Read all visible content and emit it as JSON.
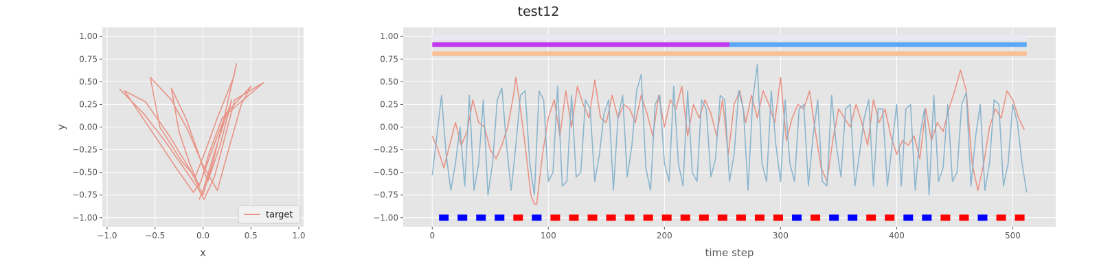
{
  "figure": {
    "title": "test12"
  },
  "chart_data": [
    {
      "type": "line",
      "name": "phase-plot",
      "xlabel": "x",
      "ylabel": "y",
      "xlim": [
        -1.05,
        1.05
      ],
      "ylim": [
        -1.1,
        1.1
      ],
      "xticks": [
        -1.0,
        -0.5,
        0.0,
        0.5,
        1.0
      ],
      "yticks": [
        -1.0,
        -0.75,
        -0.5,
        -0.25,
        0.0,
        0.25,
        0.5,
        0.75,
        1.0
      ],
      "grid": true,
      "legend": {
        "position": "lower-right",
        "entries": [
          "target"
        ]
      },
      "series": [
        {
          "name": "target",
          "color": "#E8897A",
          "x": [
            -0.87,
            -0.62,
            -0.4,
            -0.2,
            -0.05,
            0.01,
            0.12,
            0.22,
            0.33,
            0.63,
            0.2,
            0.06,
            -0.02,
            -0.1,
            -0.28,
            -0.5,
            -0.82,
            -0.6,
            -0.35,
            -0.13,
            0.0,
            0.1,
            0.22,
            0.35,
            0.32,
            0.15,
            0.03,
            -0.08,
            -0.22,
            -0.45,
            -0.55,
            -0.33,
            -0.15,
            -0.01,
            0.15,
            0.28,
            0.4,
            0.5,
            0.24,
            0.08,
            -0.04,
            -0.14,
            -0.25,
            -0.33,
            -0.18,
            -0.06,
            0.05,
            0.18,
            0.3,
            0.22,
            0.1,
            0.0,
            -0.04
          ],
          "y": [
            0.42,
            0.15,
            -0.15,
            -0.45,
            -0.68,
            -0.8,
            -0.55,
            -0.15,
            0.3,
            0.49,
            0.1,
            -0.3,
            -0.6,
            -0.72,
            -0.45,
            -0.1,
            0.4,
            0.28,
            -0.1,
            -0.48,
            -0.75,
            -0.4,
            0.1,
            0.7,
            0.55,
            0.1,
            -0.25,
            -0.55,
            -0.38,
            0.0,
            0.55,
            0.3,
            -0.05,
            -0.4,
            -0.7,
            -0.2,
            0.25,
            0.45,
            0.15,
            -0.3,
            -0.65,
            -0.4,
            -0.05,
            0.43,
            0.1,
            -0.25,
            -0.6,
            -0.2,
            0.3,
            0.05,
            -0.35,
            -0.7,
            -0.8
          ]
        }
      ]
    },
    {
      "type": "line",
      "name": "time-series",
      "xlabel": "time step",
      "ylabel": "",
      "xlim": [
        -25,
        537
      ],
      "ylim": [
        -1.1,
        1.1
      ],
      "xticks": [
        0,
        100,
        200,
        300,
        400,
        500
      ],
      "yticks": [
        -1.0,
        -0.75,
        -0.5,
        -0.25,
        0.0,
        0.25,
        0.5,
        0.75,
        1.0
      ],
      "grid": true,
      "bands": [
        {
          "y": 0.99,
          "segments": [
            {
              "start": 0,
              "end": 512,
              "color": "#E9E9F3"
            }
          ]
        },
        {
          "y": 0.91,
          "segments": [
            {
              "start": 0,
              "end": 256,
              "color": "#C23AF0"
            },
            {
              "start": 256,
              "end": 512,
              "color": "#5BA8F5"
            }
          ]
        },
        {
          "y": 0.81,
          "segments": [
            {
              "start": 0,
              "end": 512,
              "color": "#F7C097"
            }
          ]
        }
      ],
      "markers": {
        "y": -1.0,
        "x": [
          10,
          26,
          42,
          58,
          74,
          90,
          106,
          122,
          138,
          154,
          170,
          186,
          202,
          218,
          234,
          250,
          266,
          282,
          298,
          314,
          330,
          346,
          362,
          378,
          394,
          410,
          426,
          442,
          458,
          474,
          490,
          506
        ],
        "colors": [
          "#0000FF",
          "#0000FF",
          "#0000FF",
          "#0000FF",
          "#FF0000",
          "#0000FF",
          "#FF0000",
          "#FF0000",
          "#FF0000",
          "#FF0000",
          "#FF0000",
          "#FF0000",
          "#FF0000",
          "#FF0000",
          "#FF0000",
          "#FF0000",
          "#FF0000",
          "#FF0000",
          "#FF0000",
          "#0000FF",
          "#FF0000",
          "#0000FF",
          "#0000FF",
          "#FF0000",
          "#FF0000",
          "#0000FF",
          "#0000FF",
          "#FF0000",
          "#FF0000",
          "#0000FF",
          "#FF0000",
          "#FF0000"
        ]
      },
      "series": [
        {
          "name": "",
          "color": "#E8897A",
          "x": [
            0,
            5,
            10,
            15,
            20,
            25,
            30,
            35,
            40,
            45,
            50,
            55,
            60,
            65,
            70,
            72,
            75,
            80,
            85,
            88,
            90,
            95,
            100,
            105,
            110,
            115,
            120,
            125,
            130,
            135,
            140,
            145,
            150,
            155,
            160,
            165,
            170,
            175,
            180,
            185,
            190,
            195,
            200,
            205,
            210,
            215,
            220,
            225,
            230,
            235,
            240,
            245,
            250,
            255,
            260,
            265,
            270,
            275,
            280,
            285,
            290,
            295,
            300,
            305,
            310,
            315,
            320,
            325,
            330,
            335,
            340,
            345,
            350,
            355,
            360,
            365,
            370,
            375,
            380,
            385,
            390,
            395,
            400,
            405,
            410,
            415,
            420,
            425,
            430,
            435,
            440,
            445,
            450,
            455,
            460,
            465,
            470,
            475,
            480,
            485,
            490,
            495,
            500,
            505,
            510
          ],
          "y": [
            -0.1,
            -0.25,
            -0.45,
            -0.2,
            0.05,
            -0.2,
            -0.05,
            0.3,
            0.05,
            0.0,
            -0.25,
            -0.35,
            -0.2,
            0.0,
            0.35,
            0.55,
            0.3,
            -0.2,
            -0.75,
            -0.85,
            -0.85,
            -0.3,
            0.1,
            0.3,
            -0.1,
            0.4,
            0.0,
            0.45,
            0.25,
            0.1,
            0.52,
            0.1,
            0.05,
            0.35,
            0.1,
            0.25,
            0.2,
            0.05,
            0.35,
            0.15,
            -0.1,
            0.35,
            0.0,
            0.3,
            0.2,
            0.45,
            -0.1,
            0.25,
            0.1,
            0.3,
            0.15,
            -0.1,
            0.3,
            -0.3,
            0.25,
            0.4,
            0.05,
            0.35,
            0.1,
            0.4,
            0.25,
            0.05,
            0.55,
            -0.15,
            0.1,
            0.25,
            0.2,
            0.4,
            -0.05,
            -0.45,
            -0.6,
            -0.15,
            0.2,
            0.1,
            0.0,
            0.25,
            0.05,
            -0.2,
            0.3,
            0.05,
            0.2,
            -0.1,
            -0.3,
            -0.15,
            -0.2,
            -0.1,
            -0.35,
            0.2,
            -0.15,
            0.05,
            -0.05,
            0.2,
            0.4,
            0.63,
            0.4,
            -0.4,
            -0.7,
            -0.4,
            0.0,
            0.2,
            0.1,
            0.4,
            0.3,
            0.1,
            -0.03
          ]
        },
        {
          "name": "",
          "color": "#7FAFCB",
          "x": [
            0,
            4,
            8,
            12,
            16,
            20,
            24,
            28,
            32,
            36,
            40,
            44,
            48,
            52,
            56,
            60,
            64,
            68,
            72,
            76,
            80,
            84,
            88,
            92,
            96,
            100,
            104,
            108,
            112,
            116,
            120,
            124,
            128,
            132,
            136,
            140,
            144,
            148,
            152,
            156,
            160,
            164,
            168,
            172,
            176,
            180,
            184,
            188,
            192,
            196,
            200,
            204,
            208,
            212,
            216,
            220,
            224,
            228,
            232,
            236,
            240,
            244,
            248,
            252,
            256,
            260,
            264,
            268,
            272,
            276,
            280,
            284,
            288,
            292,
            296,
            300,
            304,
            308,
            312,
            316,
            320,
            324,
            328,
            332,
            336,
            340,
            344,
            348,
            352,
            356,
            360,
            364,
            368,
            372,
            376,
            380,
            384,
            388,
            392,
            396,
            400,
            404,
            408,
            412,
            416,
            420,
            424,
            428,
            432,
            436,
            440,
            444,
            448,
            452,
            456,
            460,
            464,
            468,
            472,
            476,
            480,
            484,
            488,
            492,
            496,
            500,
            504,
            508,
            512
          ],
          "y": [
            -0.53,
            -0.1,
            0.35,
            -0.3,
            -0.7,
            -0.4,
            0.0,
            -0.65,
            0.35,
            -0.7,
            -0.4,
            0.3,
            -0.75,
            -0.4,
            0.3,
            0.43,
            -0.2,
            -0.7,
            -0.2,
            0.35,
            0.4,
            -0.4,
            -0.75,
            0.4,
            0.3,
            -0.6,
            -0.5,
            0.45,
            -0.65,
            -0.6,
            0.35,
            -0.55,
            -0.5,
            0.3,
            0.2,
            -0.6,
            -0.3,
            0.15,
            0.3,
            -0.7,
            0.1,
            0.35,
            -0.55,
            -0.2,
            0.4,
            0.58,
            -0.45,
            -0.7,
            0.25,
            0.35,
            -0.4,
            -0.6,
            0.45,
            -0.4,
            -0.65,
            0.4,
            -0.5,
            -0.6,
            0.3,
            0.2,
            -0.55,
            -0.35,
            0.35,
            0.3,
            -0.6,
            -0.3,
            0.4,
            0.2,
            -0.7,
            0.3,
            0.69,
            -0.4,
            -0.6,
            0.4,
            -0.2,
            -0.6,
            0.3,
            -0.4,
            -0.6,
            0.2,
            0.25,
            -0.65,
            -0.1,
            0.3,
            -0.6,
            -0.65,
            0.35,
            -0.2,
            -0.55,
            0.2,
            0.25,
            -0.65,
            -0.3,
            0.1,
            0.3,
            -0.65,
            0.2,
            0.2,
            -0.65,
            -0.2,
            0.25,
            -0.65,
            0.2,
            0.25,
            -0.7,
            -0.1,
            0.2,
            -0.75,
            0.35,
            -0.6,
            -0.45,
            0.25,
            -0.6,
            -0.5,
            0.25,
            0.38,
            -0.65,
            -0.1,
            0.25,
            -0.7,
            -0.4,
            0.3,
            0.25,
            -0.65,
            -0.4,
            0.25,
            0.05,
            -0.4,
            -0.72
          ]
        }
      ]
    }
  ]
}
